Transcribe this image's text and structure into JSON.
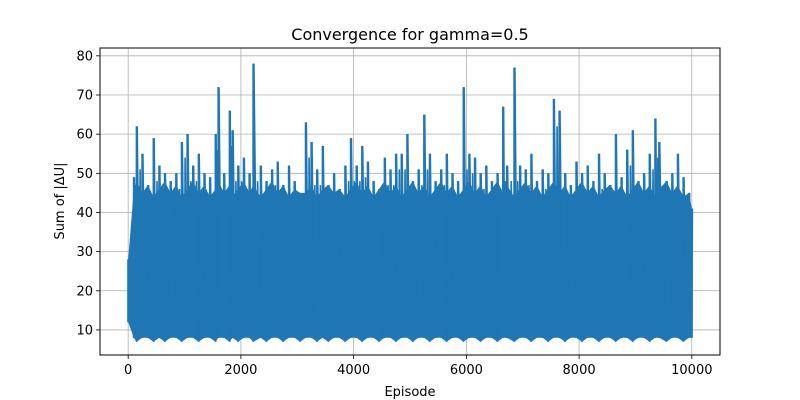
{
  "chart_data": {
    "type": "line",
    "title": "Convergence for gamma=0.5",
    "xlabel": "Episode",
    "ylabel": "Sum of |ΔU|",
    "xlim": [
      -500,
      10500
    ],
    "ylim": [
      3.6,
      82.0
    ],
    "x_ticks": [
      0,
      2000,
      4000,
      6000,
      8000,
      10000
    ],
    "x_tick_labels": [
      "0",
      "2000",
      "4000",
      "6000",
      "8000",
      "10000"
    ],
    "y_ticks": [
      10,
      20,
      30,
      40,
      50,
      60,
      70,
      80
    ],
    "y_tick_labels": [
      "10",
      "20",
      "30",
      "40",
      "50",
      "60",
      "70",
      "80"
    ],
    "grid": true,
    "line_color": "#1f77b4",
    "series": [
      {
        "name": "",
        "x": [
          0,
          100,
          150,
          250,
          350,
          450,
          550,
          650,
          750,
          850,
          950,
          1050,
          1150,
          1250,
          1350,
          1450,
          1550,
          1600,
          1700,
          1800,
          1850,
          1950,
          2050,
          2150,
          2220,
          2350,
          2450,
          2550,
          2650,
          2750,
          2850,
          2950,
          3050,
          3150,
          3250,
          3350,
          3450,
          3550,
          3650,
          3750,
          3850,
          3950,
          4050,
          4150,
          4250,
          4350,
          4450,
          4550,
          4650,
          4750,
          4850,
          4950,
          5050,
          5150,
          5250,
          5350,
          5450,
          5550,
          5650,
          5750,
          5850,
          5950,
          6050,
          6150,
          6250,
          6350,
          6450,
          6550,
          6650,
          6720,
          6850,
          6950,
          7050,
          7150,
          7250,
          7350,
          7450,
          7550,
          7650,
          7750,
          7850,
          7950,
          8050,
          8150,
          8250,
          8350,
          8450,
          8550,
          8650,
          8750,
          8850,
          8950,
          9050,
          9150,
          9250,
          9350,
          9420,
          9550,
          9650,
          9750,
          9850,
          9950,
          10000
        ],
        "max": [
          28,
          49,
          62,
          55,
          47,
          59,
          52,
          50,
          48,
          50,
          58,
          60,
          52,
          55,
          50,
          49,
          60,
          72,
          50,
          66,
          61,
          52,
          54,
          50,
          78,
          52,
          48,
          51,
          53,
          47,
          52,
          48,
          45,
          63,
          58,
          51,
          57,
          47,
          50,
          46,
          52,
          59,
          52,
          57,
          53,
          48,
          46,
          54,
          51,
          55,
          55,
          60,
          48,
          51,
          65,
          55,
          48,
          51,
          55,
          50,
          48,
          72,
          55,
          54,
          50,
          52,
          48,
          50,
          67,
          52,
          77,
          52,
          51,
          55,
          48,
          51,
          50,
          69,
          66,
          50,
          47,
          53,
          50,
          52,
          48,
          55,
          50,
          47,
          60,
          49,
          56,
          61,
          48,
          50,
          55,
          64,
          58,
          48,
          50,
          55,
          49,
          45,
          41
        ],
        "min": [
          12,
          8,
          7,
          8,
          8,
          7,
          8,
          7,
          8,
          8,
          7,
          8,
          8,
          7,
          8,
          8,
          7,
          8,
          8,
          7,
          8,
          7,
          8,
          8,
          7,
          8,
          7,
          8,
          8,
          7,
          8,
          8,
          7,
          8,
          8,
          7,
          8,
          7,
          8,
          8,
          7,
          8,
          8,
          7,
          8,
          8,
          7,
          8,
          8,
          7,
          8,
          8,
          7,
          8,
          8,
          7,
          8,
          8,
          7,
          8,
          8,
          7,
          8,
          8,
          7,
          8,
          8,
          7,
          8,
          8,
          7,
          8,
          8,
          7,
          8,
          8,
          7,
          8,
          8,
          7,
          8,
          8,
          7,
          8,
          8,
          7,
          8,
          8,
          7,
          8,
          8,
          7,
          8,
          8,
          7,
          8,
          8,
          7,
          8,
          8,
          7,
          8,
          8
        ]
      }
    ]
  }
}
